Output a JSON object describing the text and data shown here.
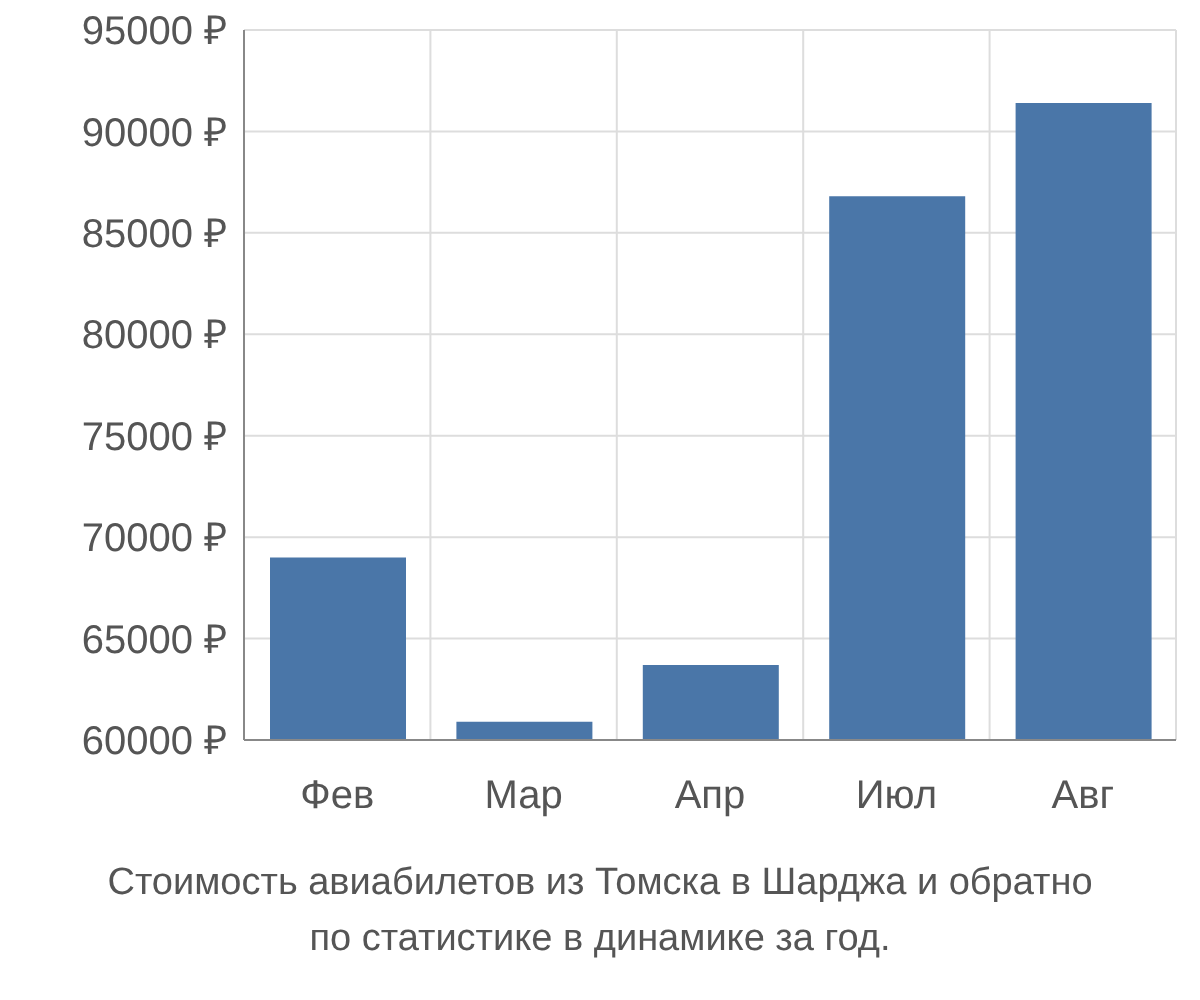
{
  "chart_data": {
    "type": "bar",
    "categories": [
      "Фев",
      "Мар",
      "Апр",
      "Июл",
      "Авг"
    ],
    "values": [
      69000,
      60900,
      63700,
      86800,
      91400
    ],
    "color": "#4a76a8",
    "ylim": [
      60000,
      95000
    ],
    "yticks": [
      {
        "value": 60000,
        "label": "60000 ₽"
      },
      {
        "value": 65000,
        "label": "65000 ₽"
      },
      {
        "value": 70000,
        "label": "70000 ₽"
      },
      {
        "value": 75000,
        "label": "75000 ₽"
      },
      {
        "value": 80000,
        "label": "80000 ₽"
      },
      {
        "value": 85000,
        "label": "85000 ₽"
      },
      {
        "value": 90000,
        "label": "90000 ₽"
      },
      {
        "value": 95000,
        "label": "95000 ₽"
      }
    ],
    "grid": true,
    "annotations": [
      "Стоимость авиабилетов из Томска в Шарджа и обратно",
      "по статистике в динамике за год."
    ]
  }
}
